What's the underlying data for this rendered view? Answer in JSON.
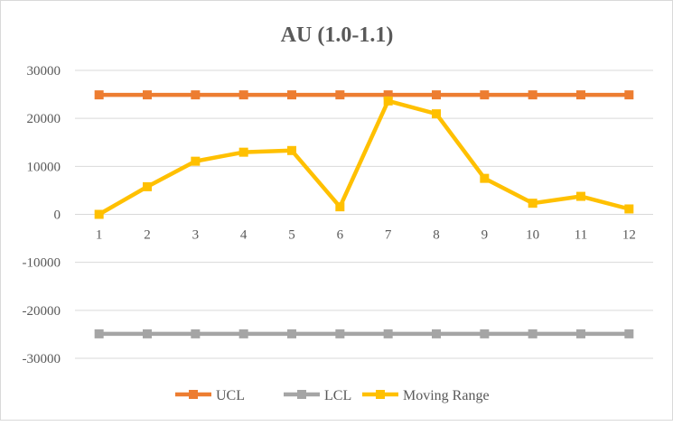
{
  "chart_data": {
    "type": "line",
    "title": "AU (1.0-1.1)",
    "categories": [
      "1",
      "2",
      "3",
      "4",
      "5",
      "6",
      "7",
      "8",
      "9",
      "10",
      "11",
      "12"
    ],
    "ylim": [
      -30000,
      30000
    ],
    "yticks": [
      "30000",
      "20000",
      "10000",
      "0",
      "-10000",
      "-20000",
      "-30000"
    ],
    "ytick_values": [
      30000,
      20000,
      10000,
      0,
      -10000,
      -20000,
      -30000
    ],
    "grid": true,
    "legend_position": "bottom",
    "series": [
      {
        "name": "UCL",
        "color": "#ED7D31",
        "values": [
          24900,
          24900,
          24900,
          24900,
          24900,
          24900,
          24900,
          24900,
          24900,
          24900,
          24900,
          24900
        ]
      },
      {
        "name": "LCL",
        "color": "#A5A5A5",
        "values": [
          -24900,
          -24900,
          -24900,
          -24900,
          -24900,
          -24900,
          -24900,
          -24900,
          -24900,
          -24900,
          -24900,
          -24900
        ]
      },
      {
        "name": "Moving Range",
        "color": "#FFC000",
        "values": [
          0,
          5760,
          11070,
          12950,
          13300,
          1570,
          23640,
          20950,
          7500,
          2320,
          3750,
          1130
        ]
      }
    ]
  }
}
